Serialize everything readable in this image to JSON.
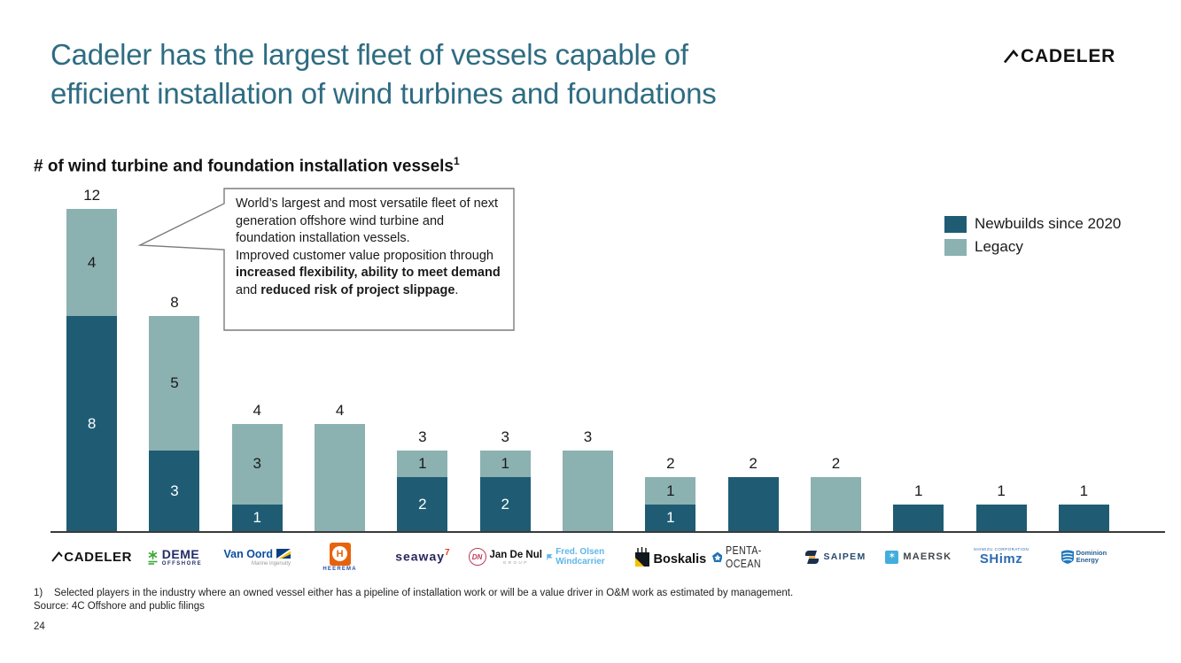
{
  "slide": {
    "title_line1": "Cadeler has the largest fleet of vessels capable of",
    "title_line2": "efficient installation of wind turbines and foundations",
    "brand": "CADELER",
    "page_number": "24"
  },
  "chart_heading": {
    "text": "# of wind turbine and foundation installation vessels",
    "superscript": "1"
  },
  "legend": {
    "items": [
      {
        "label": "Newbuilds since 2020",
        "color": "#1f5c74"
      },
      {
        "label": "Legacy",
        "color": "#8bb1b0"
      }
    ]
  },
  "callout": {
    "line1": "World’s largest and most versatile fleet of next generation offshore wind turbine and foundation installation vessels.",
    "line2_prefix": "Improved customer value proposition through ",
    "bold1": "increased flexibility, ability to meet demand",
    "mid": " and ",
    "bold2": "reduced risk of project slippage",
    "suffix": "."
  },
  "chart_data": {
    "type": "bar",
    "stacked": true,
    "title": "# of wind turbine and foundation installation vessels",
    "categories": [
      "Cadeler",
      "DEME Offshore",
      "Van Oord",
      "Heerema",
      "Seaway7",
      "Jan De Nul",
      "Fred. Olsen Windcarrier",
      "Boskalis",
      "Penta-Ocean",
      "Saipem",
      "Maersk",
      "Shimizu",
      "Dominion Energy"
    ],
    "series": [
      {
        "name": "Newbuilds since 2020",
        "color": "#1f5c74",
        "values": [
          8,
          3,
          1,
          0,
          2,
          2,
          0,
          1,
          2,
          0,
          1,
          1,
          1
        ]
      },
      {
        "name": "Legacy",
        "color": "#8bb1b0",
        "values": [
          4,
          5,
          3,
          4,
          1,
          1,
          3,
          1,
          0,
          2,
          0,
          0,
          0
        ]
      }
    ],
    "totals": [
      12,
      8,
      4,
      4,
      3,
      3,
      3,
      2,
      2,
      2,
      1,
      1,
      1
    ],
    "ylim": [
      0,
      12
    ],
    "grid": false,
    "legend_position": "top-right"
  },
  "logos": [
    {
      "id": "cadeler",
      "text": "CADELER"
    },
    {
      "id": "deme",
      "text": "DEME",
      "sub": "OFFSHORE"
    },
    {
      "id": "vanoord",
      "text": "Van Oord",
      "sub": "Marine ingenuity"
    },
    {
      "id": "heerema",
      "letter": "H",
      "sub": "HEEREMA"
    },
    {
      "id": "seaway7",
      "text": "seaway",
      "sup": "7"
    },
    {
      "id": "jandenul",
      "icon_text": "DN",
      "text": "Jan De Nul",
      "sub": "GROUP"
    },
    {
      "id": "fredolsen",
      "text": "Fred. Olsen Windcarrier"
    },
    {
      "id": "boskalis",
      "text": "Boskalis"
    },
    {
      "id": "pentaocean",
      "text": "PENTA-OCEAN"
    },
    {
      "id": "saipem",
      "text": "SAIPEM"
    },
    {
      "id": "maersk",
      "star": "✶",
      "text": "MAERSK"
    },
    {
      "id": "shimz",
      "sub": "SHIMIZU CORPORATION",
      "text": "SHimz"
    },
    {
      "id": "dominion",
      "text": "Dominion",
      "text2": "Energy"
    }
  ],
  "footnotes": {
    "note1_marker": "1)",
    "note1": "Selected players in the industry where an owned vessel either has a pipeline of installation work or will be a value driver in O&M work as estimated by management.",
    "source": "Source: 4C Offshore and public filings"
  }
}
